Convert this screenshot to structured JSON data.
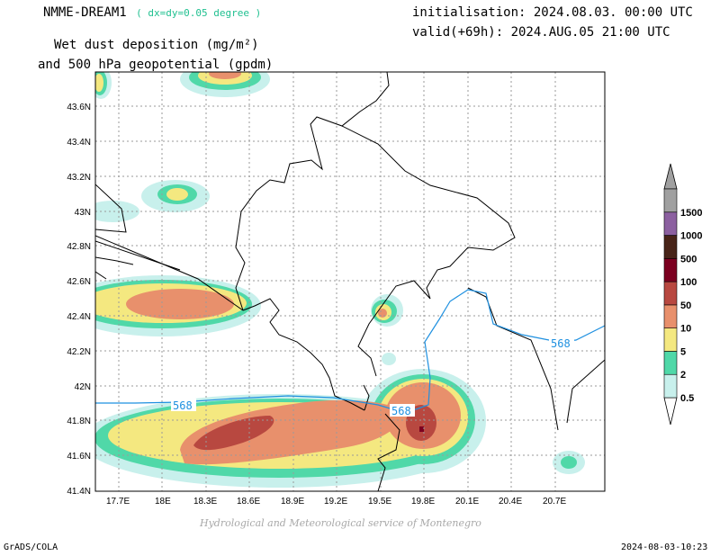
{
  "header": {
    "model": "NMME-DREAM1",
    "resolution": "( dx=dy=0.05 degree )",
    "init": "initialisation: 2024.08.03. 00:00 UTC",
    "valid": "valid(+69h): 2024.AUG.05 21:00 UTC",
    "variable_line1": "Wet dust deposition (mg/m²)",
    "variable_line2": "and 500 hPa geopotential (gpdm)"
  },
  "map": {
    "lon_ticks": [
      "17.7E",
      "18E",
      "18.3E",
      "18.6E",
      "18.9E",
      "19.2E",
      "19.5E",
      "19.8E",
      "20.1E",
      "20.4E",
      "20.7E"
    ],
    "lat_ticks": [
      "43.6N",
      "43.4N",
      "43.2N",
      "43N",
      "42.8N",
      "42.6N",
      "42.4N",
      "42.2N",
      "42N",
      "41.8N",
      "41.6N",
      "41.4N"
    ],
    "contour_labels": [
      "568",
      "568",
      "568"
    ],
    "contour_color": "#1e90e0"
  },
  "legend": {
    "levels": [
      "0.5",
      "2",
      "5",
      "10",
      "50",
      "100",
      "500",
      "1000",
      "1500"
    ],
    "colors": [
      "#c8f0ec",
      "#50d8a8",
      "#f4e880",
      "#e8906c",
      "#b84840",
      "#7c0020",
      "#482418",
      "#8c60a0",
      "#a0a0a0"
    ]
  },
  "footer": {
    "credit": "Hydrological and Meteorological service of Montenegro",
    "software": "GrADS/COLA",
    "timestamp": "2024-08-03-10:23"
  }
}
